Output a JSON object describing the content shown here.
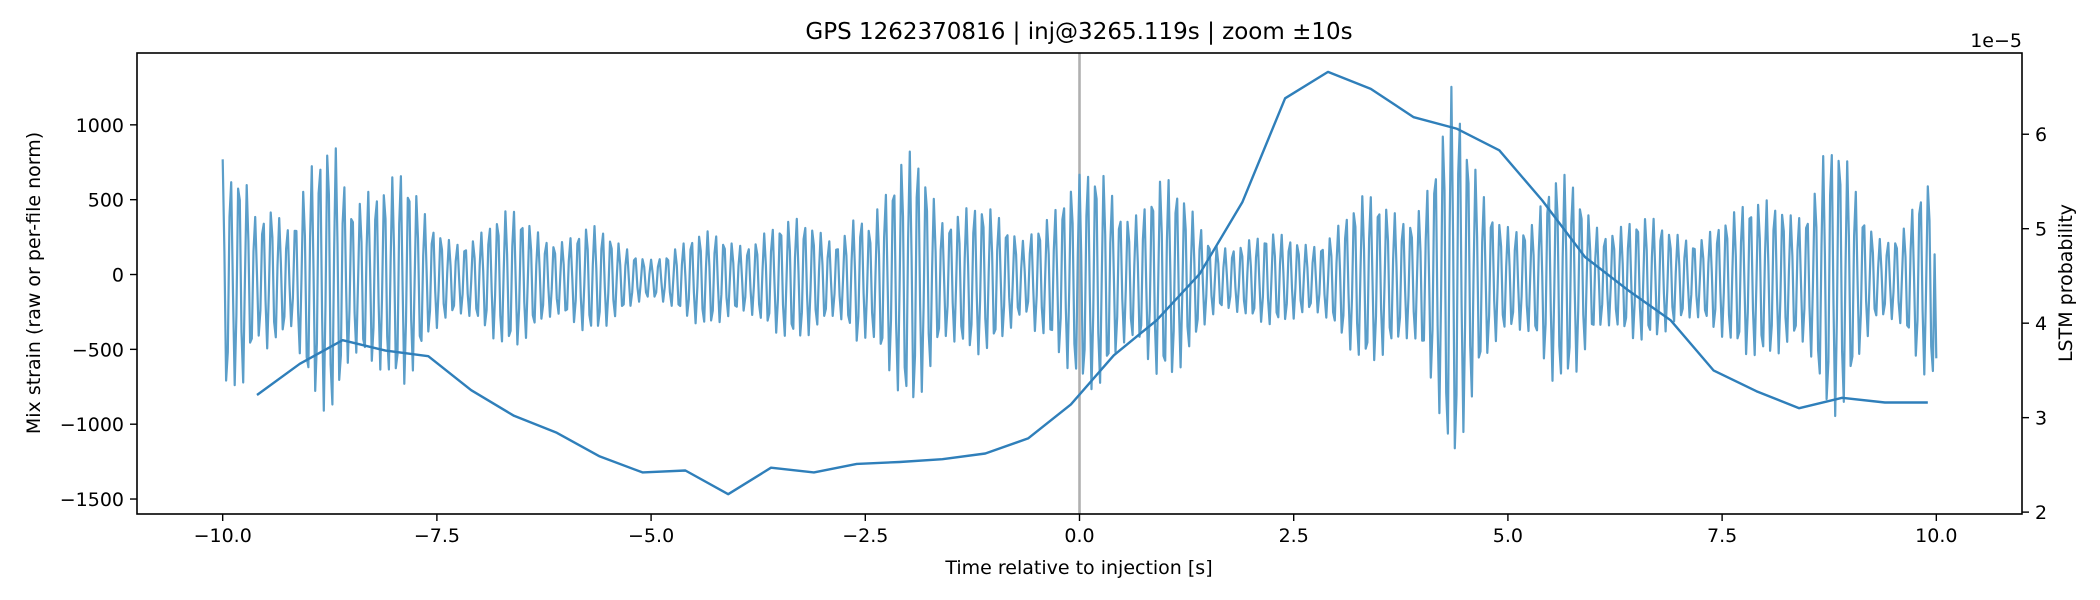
{
  "chart_data": {
    "type": "line",
    "title": "GPS 1262370816 | inj@3265.119s | zoom ±10s",
    "xlabel": "Time relative to injection [s]",
    "ylabel_left": "Mix strain (raw or per-file norm)",
    "ylabel_right": "LSTM probability",
    "right_axis_offset_label": "1e−5",
    "xlim": [
      -11.0,
      11.0
    ],
    "ylim_left": [
      -1600,
      1480
    ],
    "ylim_right": [
      1.98,
      6.86
    ],
    "x_ticks": [
      -10.0,
      -7.5,
      -5.0,
      -2.5,
      0.0,
      2.5,
      5.0,
      7.5,
      10.0
    ],
    "x_tick_labels": [
      "−10.0",
      "−7.5",
      "−5.0",
      "−2.5",
      "0.0",
      "2.5",
      "5.0",
      "7.5",
      "10.0"
    ],
    "left_ticks": [
      -1500,
      -1000,
      -500,
      0,
      500,
      1000
    ],
    "left_tick_labels": [
      "−1500",
      "−1000",
      "−500",
      "0",
      "500",
      "1000"
    ],
    "right_ticks": [
      2,
      3,
      4,
      5,
      6
    ],
    "right_tick_labels": [
      "2",
      "3",
      "4",
      "5",
      "6"
    ],
    "vline_x": 0.0,
    "colors": {
      "strain": "#5b9ec9",
      "lstm": "#2f7fba",
      "vline": "#b0b0b0"
    },
    "series": [
      {
        "name": "Mix strain",
        "axis": "left",
        "style": "oscillating",
        "x_range": [
          -10.0,
          10.0
        ],
        "sample_interval": 0.02,
        "carrier_cycles_per_s": 10.6,
        "envelope_knots": [
          [
            -10.0,
            800
          ],
          [
            -9.9,
            720
          ],
          [
            -9.75,
            880
          ],
          [
            -9.6,
            600
          ],
          [
            -9.45,
            880
          ],
          [
            -9.2,
            430
          ],
          [
            -9.0,
            760
          ],
          [
            -8.9,
            800
          ],
          [
            -8.7,
            1040
          ],
          [
            -8.5,
            760
          ],
          [
            -8.3,
            1040
          ],
          [
            -8.1,
            870
          ],
          [
            -7.9,
            760
          ],
          [
            -7.6,
            420
          ],
          [
            -7.3,
            420
          ],
          [
            -7.0,
            420
          ],
          [
            -6.6,
            470
          ],
          [
            -6.2,
            440
          ],
          [
            -5.8,
            420
          ],
          [
            -5.4,
            270
          ],
          [
            -5.0,
            230
          ],
          [
            -4.6,
            270
          ],
          [
            -4.3,
            340
          ],
          [
            -4.0,
            380
          ],
          [
            -3.7,
            440
          ],
          [
            -3.4,
            400
          ],
          [
            -3.1,
            420
          ],
          [
            -2.85,
            420
          ],
          [
            -2.6,
            670
          ],
          [
            -2.45,
            420
          ],
          [
            -2.2,
            640
          ],
          [
            -1.9,
            1180
          ],
          [
            -1.75,
            1100
          ],
          [
            -1.6,
            670
          ],
          [
            -1.3,
            540
          ],
          [
            -1.0,
            470
          ],
          [
            -0.6,
            420
          ],
          [
            -0.55,
            620
          ],
          [
            -0.3,
            600
          ],
          [
            -0.1,
            650
          ],
          [
            0.05,
            720
          ],
          [
            0.3,
            920
          ],
          [
            0.5,
            760
          ],
          [
            0.7,
            700
          ],
          [
            0.9,
            760
          ],
          [
            1.2,
            590
          ],
          [
            1.5,
            420
          ],
          [
            1.8,
            340
          ],
          [
            2.1,
            300
          ],
          [
            2.4,
            320
          ],
          [
            2.7,
            380
          ],
          [
            3.0,
            480
          ],
          [
            3.3,
            560
          ],
          [
            3.6,
            600
          ],
          [
            3.9,
            720
          ],
          [
            4.2,
            1100
          ],
          [
            4.35,
            1350
          ],
          [
            4.5,
            980
          ],
          [
            4.7,
            720
          ],
          [
            5.0,
            620
          ],
          [
            5.3,
            460
          ],
          [
            5.5,
            680
          ],
          [
            5.8,
            760
          ],
          [
            6.1,
            560
          ],
          [
            6.4,
            480
          ],
          [
            6.6,
            420
          ],
          [
            6.9,
            380
          ],
          [
            7.2,
            460
          ],
          [
            7.4,
            520
          ],
          [
            7.6,
            470
          ],
          [
            7.9,
            540
          ],
          [
            8.2,
            790
          ],
          [
            8.5,
            700
          ],
          [
            8.7,
            980
          ],
          [
            8.9,
            900
          ],
          [
            9.1,
            600
          ],
          [
            9.3,
            440
          ],
          [
            9.6,
            500
          ],
          [
            9.8,
            680
          ],
          [
            10.0,
            700
          ]
        ],
        "end_value": -560
      },
      {
        "name": "LSTM probability",
        "axis": "right",
        "scale": "1e-5",
        "x": [
          -9.6,
          -9.1,
          -8.6,
          -8.1,
          -7.6,
          -7.1,
          -6.6,
          -6.1,
          -5.6,
          -5.1,
          -4.6,
          -4.1,
          -3.6,
          -3.1,
          -2.6,
          -2.1,
          -1.6,
          -1.1,
          -0.6,
          -0.1,
          0.4,
          0.9,
          1.4,
          1.9,
          2.4,
          2.9,
          3.4,
          3.9,
          4.4,
          4.9,
          5.4,
          5.9,
          6.4,
          6.9,
          7.4,
          7.9,
          8.4,
          8.9,
          9.4,
          9.9
        ],
        "y": [
          3.24,
          3.57,
          3.82,
          3.71,
          3.65,
          3.29,
          3.02,
          2.84,
          2.59,
          2.42,
          2.44,
          2.19,
          2.47,
          2.42,
          2.51,
          2.53,
          2.56,
          2.62,
          2.78,
          3.14,
          3.66,
          4.03,
          4.52,
          5.28,
          6.38,
          6.66,
          6.48,
          6.18,
          6.06,
          5.83,
          5.3,
          4.7,
          4.35,
          4.03,
          3.5,
          3.28,
          3.1,
          3.21,
          3.16,
          3.16
        ]
      }
    ]
  }
}
